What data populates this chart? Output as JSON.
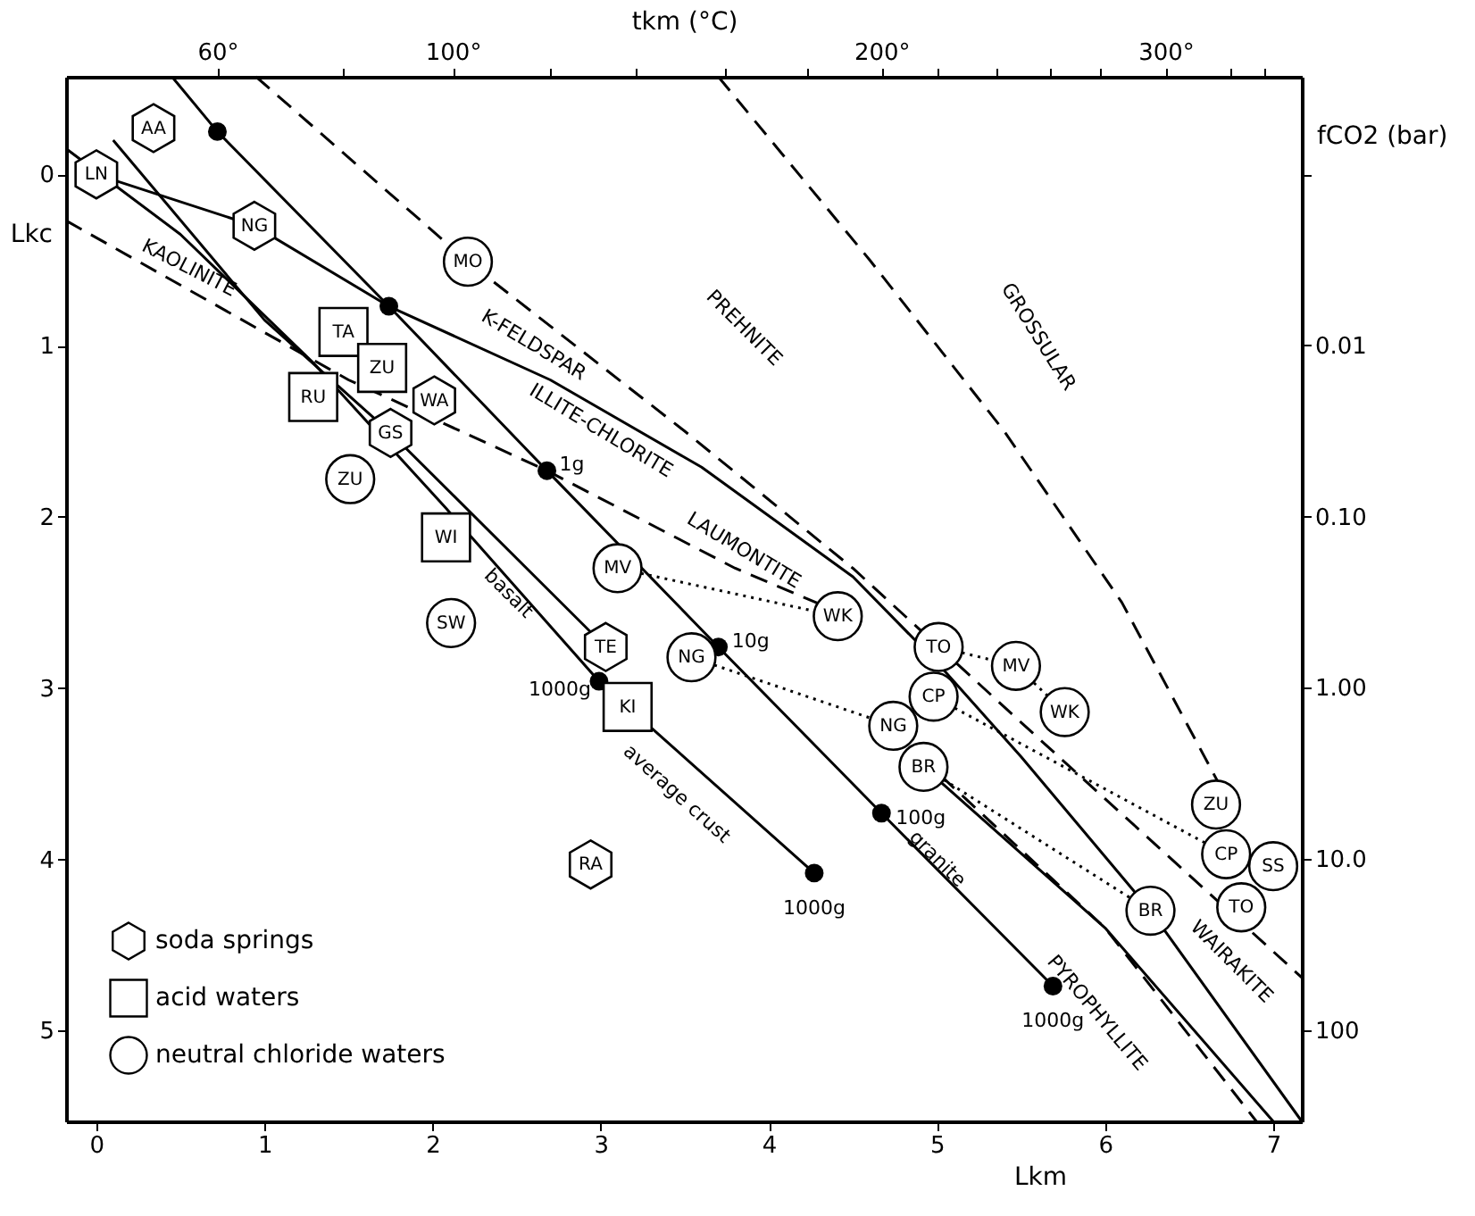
{
  "chart_data": {
    "type": "scatter",
    "xlabel": "Lkm",
    "ylabel": "Lkc",
    "x2label": "tkm (°C)",
    "y2label": "fCO2 (bar)",
    "log": "y2",
    "xlim": [
      -0.18,
      7.17
    ],
    "ylim": [
      5.53,
      -0.57
    ],
    "y2lim": [
      340,
      0.00027
    ],
    "xticks": [
      0,
      1,
      2,
      3,
      4,
      5,
      6,
      7
    ],
    "yticks": [
      0,
      1,
      2,
      3,
      4,
      5
    ],
    "y2ticks": [
      {
        "value": 0.001,
        "label": null
      },
      {
        "value": 0.01,
        "label": "0.01"
      },
      {
        "value": 0.1,
        "label": "0.10"
      },
      {
        "value": 1,
        "label": "1.00"
      },
      {
        "value": 10,
        "label": "10.0"
      },
      {
        "value": 100,
        "label": "100"
      }
    ],
    "grid": false,
    "legend": "bottom left",
    "series": [
      {
        "type": "line",
        "color": "#000000",
        "line_style": "solid",
        "x": [
          0,
          0.94,
          1.74,
          2.7,
          3.6,
          4.5,
          5.0,
          5.5,
          6.27,
          7.17
        ],
        "values": [
          0,
          0.3,
          0.77,
          1.2,
          1.71,
          2.35,
          2.85,
          3.4,
          4.3,
          5.53
        ]
      },
      {
        "type": "line",
        "color": "#000000",
        "line_style": "solid",
        "x": [
          0.45,
          0.72,
          1.74,
          2.68,
          3.7,
          4.67,
          5.69
        ],
        "values": [
          -0.57,
          -0.25,
          0.77,
          1.73,
          2.76,
          3.73,
          4.74
        ]
      },
      {
        "type": "line",
        "color": "#000000",
        "line_style": "dashed",
        "x": [
          0.95,
          2.21,
          3.5,
          4.5,
          5.5,
          7.17
        ],
        "values": [
          -0.57,
          0.51,
          1.5,
          2.3,
          3.2,
          4.69
        ]
      },
      {
        "type": "line",
        "color": "#000000",
        "line_style": "dashed",
        "x": [
          -0.18,
          1.5,
          2.68,
          3.8,
          4.4
        ],
        "values": [
          0.27,
          1.2,
          1.73,
          2.3,
          2.55
        ]
      },
      {
        "type": "line",
        "color": "#000000",
        "line_style": "solid",
        "x": [
          -0.18,
          0.5,
          1.29,
          2.08,
          2.99,
          4.27
        ],
        "values": [
          -0.15,
          0.35,
          1.1,
          1.95,
          2.96,
          4.08
        ]
      },
      {
        "type": "line",
        "color": "#000000",
        "line_style": "solid",
        "x": [
          0.1,
          1.0,
          1.75,
          3.03
        ],
        "values": [
          -0.2,
          0.85,
          1.51,
          2.76
        ]
      },
      {
        "type": "line",
        "color": "#000000",
        "line_style": "dashed",
        "x": [
          3.7,
          4.6,
          5.4,
          6.1,
          6.7
        ],
        "values": [
          -0.57,
          0.5,
          1.5,
          2.5,
          3.6
        ]
      },
      {
        "type": "line",
        "color": "#000000",
        "line_style": "dashed",
        "x": [
          4.9,
          6.0,
          6.9
        ],
        "values": [
          3.4,
          4.4,
          5.53
        ]
      },
      {
        "type": "line",
        "color": "#000000",
        "line_style": "solid",
        "x": [
          4.92,
          6.0,
          7.0
        ],
        "values": [
          3.46,
          4.4,
          5.53
        ]
      },
      {
        "type": "line",
        "color": "#000000",
        "line_style": "dotted",
        "x": [
          3.1,
          4.41
        ],
        "values": [
          2.3,
          2.58
        ]
      },
      {
        "type": "line",
        "color": "#000000",
        "line_style": "dotted",
        "x": [
          5.01,
          5.47,
          5.76
        ],
        "values": [
          2.76,
          2.87,
          3.14
        ]
      },
      {
        "type": "line",
        "color": "#000000",
        "line_style": "dotted",
        "x": [
          4.98,
          6.72
        ],
        "values": [
          3.05,
          3.97
        ]
      },
      {
        "type": "line",
        "color": "#000000",
        "line_style": "dotted",
        "x": [
          4.92,
          6.27
        ],
        "values": [
          3.46,
          4.3
        ]
      },
      {
        "type": "line",
        "color": "#000000",
        "line_style": "dotted",
        "x": [
          3.54,
          4.74
        ],
        "values": [
          2.82,
          3.22
        ]
      },
      {
        "type": "scatter",
        "color": "#000000",
        "marker": "circle",
        "x": [
          0.72,
          1.74,
          2.68,
          3.7,
          2.99,
          4.67,
          4.27,
          5.69
        ],
        "values": [
          -0.25,
          0.77,
          1.73,
          2.76,
          2.96,
          3.73,
          4.08,
          4.74
        ]
      },
      {
        "type": "scatter",
        "name": "soda springs",
        "color": "#000000",
        "x": [
          0.34,
          0,
          0.94,
          2.01,
          1.75,
          3.03,
          2.94
        ],
        "values": [
          -0.27,
          0,
          0.3,
          1.32,
          1.51,
          2.76,
          4.03
        ],
        "value_labels": [
          "AA",
          "LN",
          "NG",
          "WA",
          "GS",
          "TE",
          "RA"
        ]
      },
      {
        "type": "scatter",
        "name": "acid waters",
        "color": "#000000",
        "marker": "square",
        "x": [
          1.47,
          1.7,
          1.29,
          2.08,
          3.16
        ],
        "values": [
          0.92,
          1.13,
          1.3,
          2.12,
          3.11
        ],
        "value_labels": [
          "TA",
          "ZU",
          "RU",
          "WI",
          "KI"
        ]
      },
      {
        "type": "scatter",
        "name": "neutral chloride waters",
        "color": "#000000",
        "marker": "circle",
        "x": [
          2.21,
          1.51,
          3.1,
          2.11,
          3.54,
          4.41,
          5.01,
          5.47,
          5.76,
          4.98,
          4.74,
          4.92,
          6.27,
          6.66,
          6.72,
          7.0,
          6.81
        ],
        "values": [
          0.51,
          1.78,
          2.3,
          2.62,
          2.82,
          2.58,
          2.76,
          2.87,
          3.14,
          3.05,
          3.22,
          3.46,
          4.3,
          3.68,
          3.97,
          4.04,
          4.28
        ],
        "value_labels": [
          "MO",
          "ZU",
          "MV",
          "SW",
          "NG",
          "WK",
          "TO",
          "MV",
          "WK",
          "CP",
          "NG",
          "BR",
          "BR",
          "ZU",
          "CP",
          "SS",
          "TO"
        ]
      }
    ],
    "annotations": [
      "KAOLINITE",
      "K-FELDSPAR",
      "ILLITE-CHLORITE",
      "PREHNITE",
      "GROSSULAR",
      "LAUMONTITE",
      {
        "text": "basalt",
        "x": 2.45,
        "y": 2.45
      },
      "average crust",
      {
        "text": "granite",
        "x": 5.0,
        "y": 4.0
      },
      "PYROPHYLLITE",
      "WAIRAKITE",
      {
        "text": "1g",
        "x": 2.68,
        "y": 1.73
      },
      {
        "text": "10g",
        "x": 3.7,
        "y": 2.76
      },
      {
        "text": "100g",
        "x": 4.67,
        "y": 3.73
      },
      {
        "text": "1000g",
        "x": 2.99,
        "y": 2.96
      },
      {
        "text": "1000g",
        "x": 4.27,
        "y": 4.08
      },
      {
        "text": "1000g",
        "x": 5.69,
        "y": 4.74
      },
      "60°",
      "100°",
      "200°",
      "300°"
    ]
  }
}
